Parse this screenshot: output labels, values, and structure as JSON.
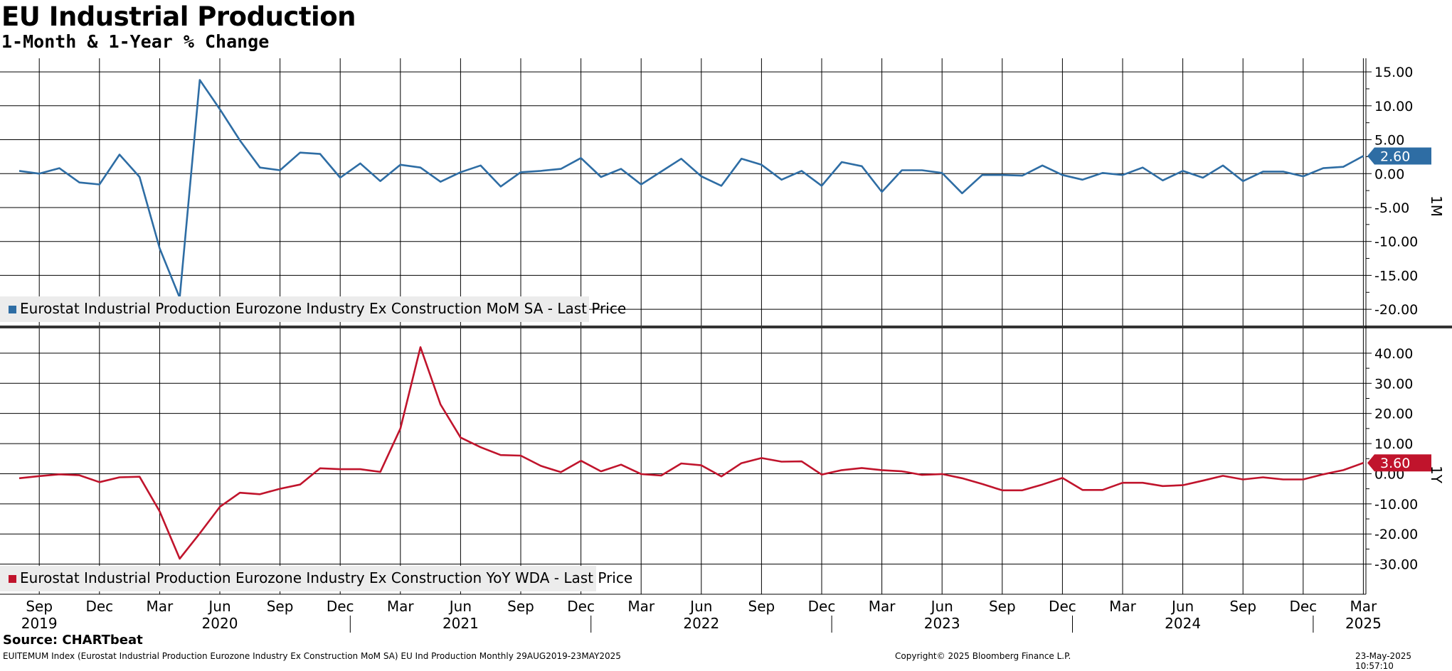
{
  "title": "EU Industrial Production",
  "subtitle": "1-Month & 1-Year % Change",
  "source": "Source: CHARTbeat",
  "footer": {
    "left": "EUITEMUM Index (Eurostat Industrial Production Eurozone Industry Ex Construction MoM SA) EU Ind Production  Monthly 29AUG2019-23MAY2025",
    "center": "Copyright© 2025 Bloomberg Finance L.P.",
    "right": "23-May-2025 10:57:10"
  },
  "colors": {
    "mom": "#2e6da4",
    "yoy": "#c0142c",
    "grid": "#000000",
    "legend_bg": "#ececec"
  },
  "chart_data": [
    {
      "type": "line",
      "panel_label": "1M",
      "legend": "Eurostat Industrial Production Eurozone Industry Ex Construction MoM SA - Last Price",
      "last_value_label": "2.60",
      "ylim": [
        -22.5,
        17
      ],
      "yticks": [
        "15.00",
        "10.00",
        "5.00",
        "0.00",
        "-5.00",
        "-10.00",
        "-15.00",
        "-20.00"
      ],
      "ytick_values": [
        15,
        10,
        5,
        0,
        -5,
        -10,
        -15,
        -20
      ],
      "x_start": "2019-08",
      "series": [
        {
          "values": [
            0.4,
            0.0,
            0.8,
            -1.3,
            -1.6,
            2.8,
            -0.5,
            -11.0,
            -18.3,
            13.8,
            9.5,
            4.9,
            0.9,
            0.5,
            3.1,
            2.9,
            -0.6,
            1.5,
            -1.1,
            1.3,
            0.9,
            -1.2,
            0.2,
            1.2,
            -1.9,
            0.2,
            0.4,
            0.7,
            2.3,
            -0.5,
            0.7,
            -1.6,
            0.3,
            2.2,
            -0.4,
            -1.8,
            2.2,
            1.3,
            -0.9,
            0.4,
            -1.8,
            1.7,
            1.1,
            -2.7,
            0.5,
            0.5,
            0.1,
            -2.9,
            -0.2,
            -0.2,
            -0.3,
            1.2,
            -0.2,
            -0.9,
            0.1,
            -0.2,
            0.9,
            -1.0,
            0.4,
            -0.6,
            1.2,
            -1.1,
            0.3,
            0.3,
            -0.4,
            0.8,
            1.0,
            2.6
          ]
        }
      ]
    },
    {
      "type": "line",
      "panel_label": "1Y",
      "legend": "Eurostat Industrial Production Eurozone Industry Ex Construction YoY WDA - Last Price",
      "last_value_label": "3.60",
      "ylim": [
        -40,
        48
      ],
      "yticks": [
        "40.00",
        "30.00",
        "20.00",
        "10.00",
        "0.00",
        "-10.00",
        "-20.00",
        "-30.00"
      ],
      "ytick_values": [
        40,
        30,
        20,
        10,
        0,
        -10,
        -20,
        -30
      ],
      "x_start": "2019-08",
      "series": [
        {
          "values": [
            -1.5,
            -0.8,
            -0.2,
            -0.5,
            -2.8,
            -1.2,
            -1.0,
            -12.5,
            -28.2,
            -19.8,
            -11.0,
            -6.3,
            -6.8,
            -5.0,
            -3.6,
            1.8,
            1.5,
            1.5,
            0.6,
            15.0,
            42.0,
            23.0,
            12.0,
            8.8,
            6.2,
            6.0,
            2.6,
            0.5,
            4.3,
            0.8,
            3.0,
            -0.1,
            -0.6,
            3.4,
            2.8,
            -0.9,
            3.5,
            5.2,
            4.0,
            4.1,
            -0.3,
            1.2,
            1.9,
            1.2,
            0.8,
            -0.4,
            -0.1,
            -1.5,
            -3.4,
            -5.5,
            -5.5,
            -3.6,
            -1.4,
            -5.4,
            -5.4,
            -3.0,
            -3.0,
            -4.1,
            -3.8,
            -2.3,
            -0.7,
            -1.9,
            -1.2,
            -1.9,
            -1.9,
            -0.2,
            1.2,
            3.6
          ]
        }
      ]
    }
  ],
  "xaxis": {
    "months": [
      {
        "label": "Sep",
        "index": 1
      },
      {
        "label": "Dec",
        "index": 4
      },
      {
        "label": "Mar",
        "index": 7
      },
      {
        "label": "Jun",
        "index": 10
      },
      {
        "label": "Sep",
        "index": 13
      },
      {
        "label": "Dec",
        "index": 16
      },
      {
        "label": "Mar",
        "index": 19
      },
      {
        "label": "Jun",
        "index": 22
      },
      {
        "label": "Sep",
        "index": 25
      },
      {
        "label": "Dec",
        "index": 28
      },
      {
        "label": "Mar",
        "index": 31
      },
      {
        "label": "Jun",
        "index": 34
      },
      {
        "label": "Sep",
        "index": 37
      },
      {
        "label": "Dec",
        "index": 40
      },
      {
        "label": "Mar",
        "index": 43
      },
      {
        "label": "Jun",
        "index": 46
      },
      {
        "label": "Sep",
        "index": 49
      },
      {
        "label": "Dec",
        "index": 52
      },
      {
        "label": "Mar",
        "index": 55
      },
      {
        "label": "Jun",
        "index": 58
      },
      {
        "label": "Sep",
        "index": 61
      },
      {
        "label": "Dec",
        "index": 64
      },
      {
        "label": "Mar",
        "index": 67
      }
    ],
    "years": [
      {
        "label": "2019",
        "index": 1
      },
      {
        "label": "2020",
        "index": 10
      },
      {
        "label": "2021",
        "index": 22
      },
      {
        "label": "2022",
        "index": 34
      },
      {
        "label": "2023",
        "index": 46
      },
      {
        "label": "2024",
        "index": 58
      },
      {
        "label": "2025",
        "index": 67
      }
    ],
    "year_dividers": [
      16.5,
      28.5,
      40.5,
      52.5,
      64.5
    ]
  }
}
